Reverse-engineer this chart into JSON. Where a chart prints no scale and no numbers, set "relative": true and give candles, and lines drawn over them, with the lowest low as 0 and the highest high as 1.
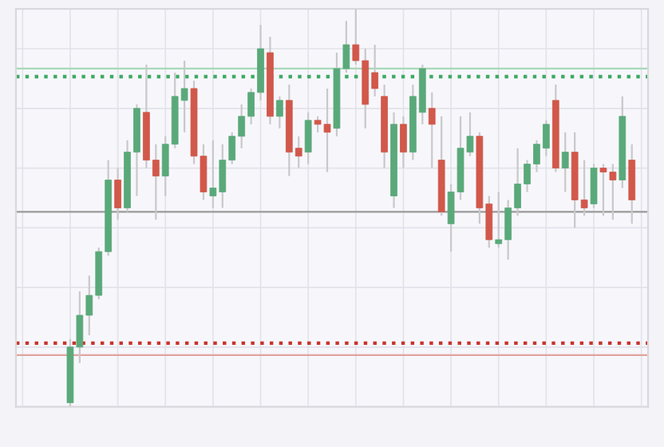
{
  "chart_data": {
    "type": "candlestick",
    "relative": true,
    "grid": true,
    "categories": [
      null,
      null,
      null,
      null,
      null,
      null,
      null,
      null,
      null,
      null,
      null,
      null,
      null,
      null,
      null,
      null,
      null,
      null,
      null,
      null,
      null,
      null,
      null,
      null,
      null,
      null,
      null,
      null,
      null,
      null,
      null,
      null,
      null,
      null,
      null,
      null,
      null,
      null,
      null,
      null,
      null,
      null,
      null,
      null,
      null,
      null,
      null,
      null,
      null,
      null,
      null,
      null,
      null,
      null,
      null,
      null,
      null,
      null,
      null,
      null
    ],
    "series": [
      {
        "colors": [
          "#5aa97a",
          "#5aa97a",
          "#5aa97a",
          "#5aa97a",
          "#5aa97a",
          "#d1584a",
          "#5aa97a",
          "#5aa97a",
          "#d1584a",
          "#d1584a",
          "#5aa97a",
          "#5aa97a",
          "#5aa97a",
          "#d1584a",
          "#d1584a",
          "#5aa97a",
          "#5aa97a",
          "#5aa97a",
          "#5aa97a",
          "#5aa97a",
          "#5aa97a",
          "#d1584a",
          "#5aa97a",
          "#d1584a",
          "#d1584a",
          "#5aa97a",
          "#d1584a",
          "#d1584a",
          "#5aa97a",
          "#5aa97a",
          "#d1584a",
          "#d1584a",
          "#d1584a",
          "#d1584a",
          "#5aa97a",
          "#d1584a",
          "#5aa97a",
          "#5aa97a",
          "#d1584a",
          "#d1584a",
          "#5aa97a",
          "#5aa97a",
          "#5aa97a",
          "#d1584a",
          "#d1584a",
          "#5aa97a",
          "#5aa97a",
          "#5aa97a",
          "#5aa97a",
          "#5aa97a",
          "#5aa97a",
          "#d1584a",
          "#5aa97a",
          "#d1584a",
          "#d1584a",
          "#5aa97a",
          "#d1584a",
          "#d1584a",
          "#5aa97a",
          "#d1584a"
        ],
        "ohlc": [
          [
            0.01,
            0.17,
            0,
            0.15
          ],
          [
            0.15,
            0.29,
            0.11,
            0.23
          ],
          [
            0.23,
            0.33,
            0.18,
            0.28
          ],
          [
            0.28,
            0.4,
            0.27,
            0.39
          ],
          [
            0.39,
            0.62,
            0.38,
            0.57
          ],
          [
            0.57,
            0.6,
            0.47,
            0.5
          ],
          [
            0.5,
            0.67,
            0.49,
            0.64
          ],
          [
            0.64,
            0.76,
            0.53,
            0.75
          ],
          [
            0.74,
            0.86,
            0.6,
            0.62
          ],
          [
            0.62,
            0.66,
            0.47,
            0.58
          ],
          [
            0.58,
            0.68,
            0.53,
            0.66
          ],
          [
            0.66,
            0.84,
            0.65,
            0.78
          ],
          [
            0.77,
            0.87,
            0.69,
            0.8
          ],
          [
            0.8,
            0.82,
            0.61,
            0.63
          ],
          [
            0.63,
            0.66,
            0.52,
            0.54
          ],
          [
            0.53,
            0.67,
            0.5,
            0.55
          ],
          [
            0.54,
            0.66,
            0.5,
            0.62
          ],
          [
            0.62,
            0.69,
            0.61,
            0.68
          ],
          [
            0.68,
            0.76,
            0.65,
            0.73
          ],
          [
            0.73,
            0.8,
            0.71,
            0.79
          ],
          [
            0.79,
            0.96,
            0.77,
            0.9
          ],
          [
            0.89,
            0.93,
            0.71,
            0.73
          ],
          [
            0.73,
            0.78,
            0.7,
            0.77
          ],
          [
            0.77,
            0.81,
            0.58,
            0.64
          ],
          [
            0.65,
            0.68,
            0.6,
            0.63
          ],
          [
            0.64,
            0.74,
            0.61,
            0.72
          ],
          [
            0.72,
            0.73,
            0.69,
            0.71
          ],
          [
            0.71,
            0.8,
            0.59,
            0.69
          ],
          [
            0.7,
            0.89,
            0.68,
            0.85
          ],
          [
            0.85,
            0.97,
            0.84,
            0.91
          ],
          [
            0.91,
            1.0,
            0.86,
            0.87
          ],
          [
            0.87,
            0.9,
            0.7,
            0.76
          ],
          [
            0.84,
            0.91,
            0.78,
            0.8
          ],
          [
            0.78,
            0.81,
            0.6,
            0.64
          ],
          [
            0.53,
            0.74,
            0.5,
            0.71
          ],
          [
            0.71,
            0.73,
            0.6,
            0.64
          ],
          [
            0.64,
            0.81,
            0.62,
            0.78
          ],
          [
            0.74,
            0.86,
            0.71,
            0.85
          ],
          [
            0.75,
            0.79,
            0.6,
            0.71
          ],
          [
            0.62,
            0.73,
            0.48,
            0.49
          ],
          [
            0.46,
            0.56,
            0.39,
            0.54
          ],
          [
            0.54,
            0.73,
            0.52,
            0.65
          ],
          [
            0.64,
            0.74,
            0.63,
            0.68
          ],
          [
            0.68,
            0.69,
            0.46,
            0.5
          ],
          [
            0.51,
            0.53,
            0.4,
            0.42
          ],
          [
            0.41,
            0.54,
            0.4,
            0.42
          ],
          [
            0.42,
            0.52,
            0.37,
            0.5
          ],
          [
            0.5,
            0.65,
            0.48,
            0.56
          ],
          [
            0.56,
            0.62,
            0.54,
            0.61
          ],
          [
            0.61,
            0.67,
            0.59,
            0.66
          ],
          [
            0.65,
            0.72,
            0.63,
            0.71
          ],
          [
            0.77,
            0.81,
            0.59,
            0.6
          ],
          [
            0.6,
            0.69,
            0.54,
            0.64
          ],
          [
            0.64,
            0.69,
            0.45,
            0.52
          ],
          [
            0.52,
            0.62,
            0.48,
            0.5
          ],
          [
            0.51,
            0.61,
            0.5,
            0.6
          ],
          [
            0.6,
            0.61,
            0.48,
            0.59
          ],
          [
            0.59,
            0.61,
            0.47,
            0.57
          ],
          [
            0.57,
            0.78,
            0.55,
            0.73
          ],
          [
            0.62,
            0.66,
            0.46,
            0.52
          ]
        ]
      }
    ],
    "ref_lines": [
      {
        "axis": "y",
        "value": 0.85,
        "color": "#a9d8b8",
        "line_style": "solid"
      },
      {
        "axis": "y",
        "value": 0.83,
        "color": "#3faa66",
        "line_style": "dotted"
      },
      {
        "axis": "y",
        "value": 0.49,
        "color": "#9a9a9a",
        "line_style": "solid"
      },
      {
        "axis": "y",
        "value": 0.16,
        "color": "#c8342c",
        "line_style": "dotted"
      },
      {
        "axis": "y",
        "value": 0.13,
        "color": "#e2a49e",
        "line_style": "solid"
      }
    ]
  }
}
